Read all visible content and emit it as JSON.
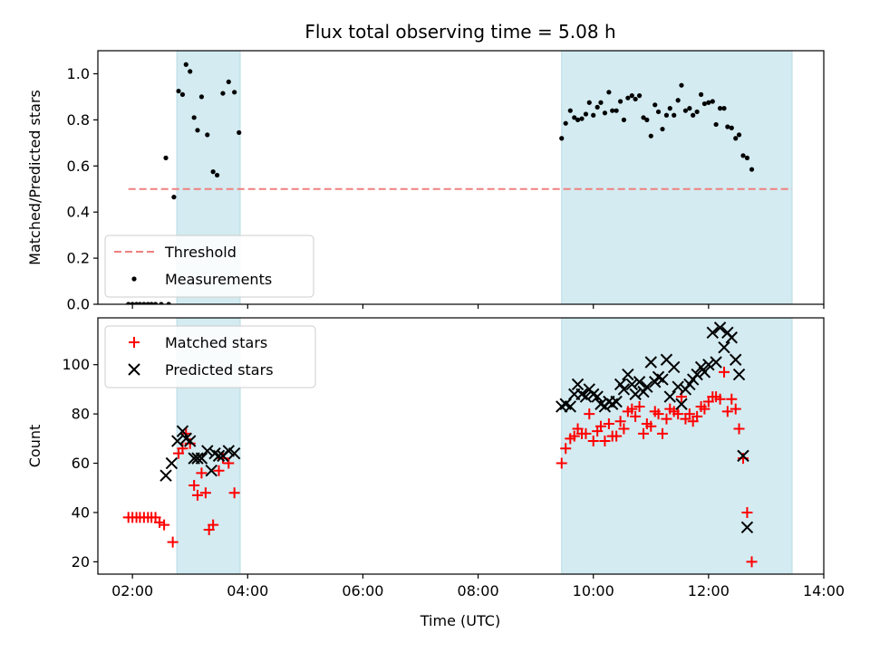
{
  "chart_data": {
    "type": "scatter",
    "title": "Flux total observing time = 5.08 h",
    "xlabel": "Time (UTC)",
    "x_ticks": [
      "02:00",
      "04:00",
      "06:00",
      "08:00",
      "10:00",
      "12:00",
      "14:00"
    ],
    "x_tick_hours": [
      2,
      4,
      6,
      8,
      10,
      12,
      14
    ],
    "xlim_hours": [
      1.4,
      14.0
    ],
    "shaded_intervals_hours": [
      [
        2.77,
        3.87
      ],
      [
        9.45,
        13.45
      ]
    ],
    "shade_color": "#d3ebf1",
    "panels": [
      {
        "id": "ratio",
        "ylabel": "Matched/Predicted stars",
        "ylim": [
          0,
          1.1
        ],
        "y_ticks": [
          0.0,
          0.2,
          0.4,
          0.6,
          0.8,
          1.0
        ],
        "y_tick_labels": [
          "0.0",
          "0.2",
          "0.4",
          "0.6",
          "0.8",
          "1.0"
        ],
        "threshold": {
          "label": "Threshold",
          "value": 0.5,
          "x_range_hours": [
            1.93,
            13.45
          ],
          "color": "#f08080"
        },
        "series": [
          {
            "name": "Measurements",
            "marker": "dot",
            "color": "#000000",
            "points": [
              [
                1.93,
                0
              ],
              [
                2.0,
                0
              ],
              [
                2.07,
                0
              ],
              [
                2.13,
                0
              ],
              [
                2.2,
                0
              ],
              [
                2.27,
                0
              ],
              [
                2.33,
                0
              ],
              [
                2.4,
                0
              ],
              [
                2.5,
                0
              ],
              [
                2.58,
                0.635
              ],
              [
                2.63,
                0
              ],
              [
                2.72,
                0.465
              ],
              [
                2.8,
                0.925
              ],
              [
                2.87,
                0.91
              ],
              [
                2.93,
                1.04
              ],
              [
                3.0,
                1.01
              ],
              [
                3.07,
                0.81
              ],
              [
                3.13,
                0.755
              ],
              [
                3.2,
                0.9
              ],
              [
                3.3,
                0.735
              ],
              [
                3.4,
                0.575
              ],
              [
                3.47,
                0.56
              ],
              [
                3.57,
                0.915
              ],
              [
                3.67,
                0.965
              ],
              [
                3.77,
                0.92
              ],
              [
                3.85,
                0.745
              ],
              [
                9.45,
                0.72
              ],
              [
                9.52,
                0.785
              ],
              [
                9.6,
                0.84
              ],
              [
                9.67,
                0.81
              ],
              [
                9.73,
                0.8
              ],
              [
                9.8,
                0.805
              ],
              [
                9.87,
                0.825
              ],
              [
                9.93,
                0.875
              ],
              [
                10.0,
                0.82
              ],
              [
                10.07,
                0.855
              ],
              [
                10.13,
                0.875
              ],
              [
                10.2,
                0.83
              ],
              [
                10.27,
                0.92
              ],
              [
                10.33,
                0.84
              ],
              [
                10.4,
                0.84
              ],
              [
                10.47,
                0.88
              ],
              [
                10.53,
                0.8
              ],
              [
                10.6,
                0.895
              ],
              [
                10.67,
                0.905
              ],
              [
                10.73,
                0.89
              ],
              [
                10.8,
                0.905
              ],
              [
                10.87,
                0.81
              ],
              [
                10.93,
                0.8
              ],
              [
                11.0,
                0.73
              ],
              [
                11.07,
                0.865
              ],
              [
                11.13,
                0.835
              ],
              [
                11.2,
                0.76
              ],
              [
                11.27,
                0.82
              ],
              [
                11.33,
                0.85
              ],
              [
                11.4,
                0.82
              ],
              [
                11.47,
                0.885
              ],
              [
                11.53,
                0.95
              ],
              [
                11.6,
                0.84
              ],
              [
                11.67,
                0.85
              ],
              [
                11.73,
                0.82
              ],
              [
                11.8,
                0.835
              ],
              [
                11.87,
                0.91
              ],
              [
                11.93,
                0.87
              ],
              [
                12.0,
                0.875
              ],
              [
                12.07,
                0.88
              ],
              [
                12.13,
                0.78
              ],
              [
                12.2,
                0.85
              ],
              [
                12.27,
                0.85
              ],
              [
                12.33,
                0.77
              ],
              [
                12.4,
                0.765
              ],
              [
                12.47,
                0.72
              ],
              [
                12.53,
                0.735
              ],
              [
                12.6,
                0.645
              ],
              [
                12.67,
                0.635
              ],
              [
                12.75,
                0.585
              ]
            ]
          }
        ],
        "legend": [
          {
            "label": "Threshold",
            "marker": "dash"
          },
          {
            "label": "Measurements",
            "marker": "dot"
          }
        ]
      },
      {
        "id": "counts",
        "ylabel": "Count",
        "ylim": [
          15,
          119
        ],
        "y_ticks": [
          20,
          40,
          60,
          80,
          100
        ],
        "y_tick_labels": [
          "20",
          "40",
          "60",
          "80",
          "100"
        ],
        "series": [
          {
            "name": "Matched stars",
            "marker": "plus",
            "color": "#ff0000",
            "points": [
              [
                1.93,
                38
              ],
              [
                2.0,
                38
              ],
              [
                2.07,
                38
              ],
              [
                2.13,
                38
              ],
              [
                2.2,
                38
              ],
              [
                2.27,
                38
              ],
              [
                2.33,
                38
              ],
              [
                2.4,
                38
              ],
              [
                2.47,
                36
              ],
              [
                2.55,
                35
              ],
              [
                2.7,
                28
              ],
              [
                2.8,
                64
              ],
              [
                2.87,
                66
              ],
              [
                2.93,
                72
              ],
              [
                3.0,
                68
              ],
              [
                3.07,
                51
              ],
              [
                3.13,
                47
              ],
              [
                3.2,
                56
              ],
              [
                3.27,
                48
              ],
              [
                3.33,
                33
              ],
              [
                3.4,
                35
              ],
              [
                3.5,
                57
              ],
              [
                3.57,
                62
              ],
              [
                3.67,
                60
              ],
              [
                3.77,
                48
              ],
              [
                9.45,
                60
              ],
              [
                9.52,
                66
              ],
              [
                9.6,
                70
              ],
              [
                9.67,
                71
              ],
              [
                9.73,
                74
              ],
              [
                9.8,
                72
              ],
              [
                9.87,
                72
              ],
              [
                9.93,
                80
              ],
              [
                10.0,
                69
              ],
              [
                10.07,
                73
              ],
              [
                10.13,
                75
              ],
              [
                10.2,
                69
              ],
              [
                10.27,
                76
              ],
              [
                10.33,
                71
              ],
              [
                10.4,
                71
              ],
              [
                10.47,
                77
              ],
              [
                10.53,
                74
              ],
              [
                10.6,
                81
              ],
              [
                10.67,
                82
              ],
              [
                10.73,
                79
              ],
              [
                10.8,
                83
              ],
              [
                10.87,
                72
              ],
              [
                10.93,
                76
              ],
              [
                11.0,
                75
              ],
              [
                11.07,
                81
              ],
              [
                11.13,
                80
              ],
              [
                11.2,
                72
              ],
              [
                11.27,
                78
              ],
              [
                11.33,
                82
              ],
              [
                11.4,
                81
              ],
              [
                11.47,
                80
              ],
              [
                11.53,
                87
              ],
              [
                11.6,
                78
              ],
              [
                11.67,
                80
              ],
              [
                11.73,
                77
              ],
              [
                11.8,
                79
              ],
              [
                11.87,
                83
              ],
              [
                11.93,
                82
              ],
              [
                12.0,
                85
              ],
              [
                12.07,
                87
              ],
              [
                12.13,
                87
              ],
              [
                12.2,
                86
              ],
              [
                12.27,
                97
              ],
              [
                12.33,
                81
              ],
              [
                12.4,
                86
              ],
              [
                12.47,
                82
              ],
              [
                12.53,
                74
              ],
              [
                12.6,
                62
              ],
              [
                12.67,
                40
              ],
              [
                12.75,
                20
              ]
            ]
          },
          {
            "name": "Predicted stars",
            "marker": "x",
            "color": "#000000",
            "points": [
              [
                2.58,
                55
              ],
              [
                2.68,
                60
              ],
              [
                2.78,
                69
              ],
              [
                2.87,
                73
              ],
              [
                2.93,
                70
              ],
              [
                3.0,
                69
              ],
              [
                3.07,
                62
              ],
              [
                3.13,
                62
              ],
              [
                3.2,
                62
              ],
              [
                3.3,
                65
              ],
              [
                3.37,
                57
              ],
              [
                3.43,
                64
              ],
              [
                3.5,
                63
              ],
              [
                3.57,
                63
              ],
              [
                3.67,
                65
              ],
              [
                3.77,
                64
              ],
              [
                9.45,
                83
              ],
              [
                9.52,
                84
              ],
              [
                9.6,
                83
              ],
              [
                9.67,
                88
              ],
              [
                9.73,
                92
              ],
              [
                9.8,
                88
              ],
              [
                9.87,
                87
              ],
              [
                9.93,
                90
              ],
              [
                10.0,
                88
              ],
              [
                10.07,
                87
              ],
              [
                10.13,
                84
              ],
              [
                10.2,
                83
              ],
              [
                10.27,
                85
              ],
              [
                10.33,
                84
              ],
              [
                10.4,
                85
              ],
              [
                10.47,
                92
              ],
              [
                10.53,
                90
              ],
              [
                10.6,
                96
              ],
              [
                10.67,
                92
              ],
              [
                10.73,
                88
              ],
              [
                10.8,
                93
              ],
              [
                10.87,
                89
              ],
              [
                10.93,
                91
              ],
              [
                11.0,
                101
              ],
              [
                11.07,
                93
              ],
              [
                11.13,
                95
              ],
              [
                11.2,
                94
              ],
              [
                11.27,
                102
              ],
              [
                11.33,
                87
              ],
              [
                11.4,
                99
              ],
              [
                11.47,
                91
              ],
              [
                11.53,
                84
              ],
              [
                11.6,
                90
              ],
              [
                11.67,
                92
              ],
              [
                11.73,
                94
              ],
              [
                11.8,
                96
              ],
              [
                11.87,
                99
              ],
              [
                11.93,
                97
              ],
              [
                12.0,
                100
              ],
              [
                12.07,
                113
              ],
              [
                12.13,
                101
              ],
              [
                12.2,
                115
              ],
              [
                12.27,
                107
              ],
              [
                12.33,
                113
              ],
              [
                12.4,
                111
              ],
              [
                12.47,
                102
              ],
              [
                12.53,
                96
              ],
              [
                12.6,
                63
              ],
              [
                12.67,
                34
              ]
            ]
          }
        ],
        "legend": [
          {
            "label": "Matched stars",
            "marker": "plus"
          },
          {
            "label": "Predicted stars",
            "marker": "x"
          }
        ]
      }
    ]
  }
}
